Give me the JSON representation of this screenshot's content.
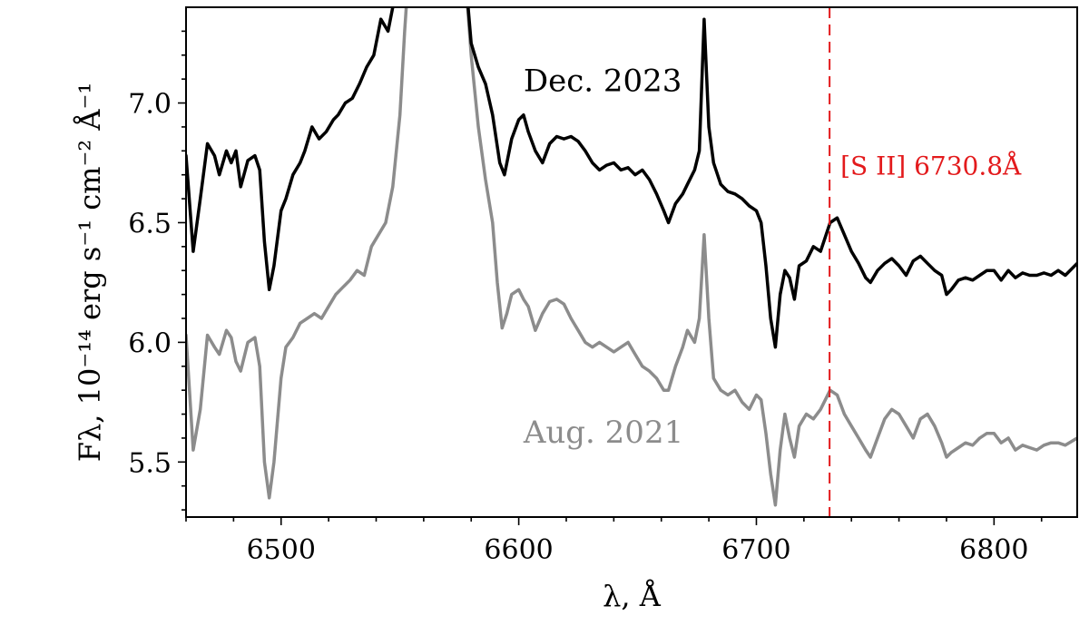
{
  "chart_data": {
    "type": "line",
    "xlabel": "λ, Å",
    "ylabel": "Fλ, 10⁻¹⁴ erg s⁻¹ cm⁻² Å⁻¹",
    "xlim": [
      6460,
      6835
    ],
    "ylim": [
      5.27,
      7.4
    ],
    "x_ticks": [
      6500,
      6600,
      6700,
      6800
    ],
    "x_tick_labels": [
      "6500",
      "6600",
      "6700",
      "6800"
    ],
    "y_ticks": [
      5.5,
      6.0,
      6.5,
      7.0
    ],
    "y_tick_labels": [
      "5.5",
      "6.0",
      "6.5",
      "7.0"
    ],
    "grid": false,
    "series": [
      {
        "name": "Dec. 2023",
        "color": "#000000",
        "points": [
          [
            6460,
            6.78
          ],
          [
            6463,
            6.38
          ],
          [
            6466,
            6.6
          ],
          [
            6469,
            6.83
          ],
          [
            6472,
            6.78
          ],
          [
            6474,
            6.7
          ],
          [
            6477,
            6.8
          ],
          [
            6479,
            6.75
          ],
          [
            6481,
            6.8
          ],
          [
            6483,
            6.65
          ],
          [
            6486,
            6.76
          ],
          [
            6489,
            6.78
          ],
          [
            6491,
            6.72
          ],
          [
            6493,
            6.42
          ],
          [
            6495,
            6.22
          ],
          [
            6497,
            6.32
          ],
          [
            6500,
            6.55
          ],
          [
            6502,
            6.6
          ],
          [
            6505,
            6.7
          ],
          [
            6508,
            6.75
          ],
          [
            6510,
            6.8
          ],
          [
            6513,
            6.9
          ],
          [
            6516,
            6.85
          ],
          [
            6519,
            6.88
          ],
          [
            6522,
            6.93
          ],
          [
            6524,
            6.95
          ],
          [
            6527,
            7.0
          ],
          [
            6530,
            7.02
          ],
          [
            6533,
            7.08
          ],
          [
            6536,
            7.15
          ],
          [
            6539,
            7.2
          ],
          [
            6542,
            7.35
          ],
          [
            6545,
            7.3
          ],
          [
            6548,
            7.45
          ],
          [
            6552,
            7.6
          ],
          [
            6577,
            7.6
          ],
          [
            6580,
            7.25
          ],
          [
            6583,
            7.15
          ],
          [
            6586,
            7.08
          ],
          [
            6589,
            6.95
          ],
          [
            6592,
            6.75
          ],
          [
            6594,
            6.7
          ],
          [
            6597,
            6.85
          ],
          [
            6600,
            6.93
          ],
          [
            6602,
            6.95
          ],
          [
            6604,
            6.88
          ],
          [
            6607,
            6.8
          ],
          [
            6610,
            6.75
          ],
          [
            6613,
            6.83
          ],
          [
            6616,
            6.86
          ],
          [
            6619,
            6.85
          ],
          [
            6622,
            6.86
          ],
          [
            6625,
            6.84
          ],
          [
            6628,
            6.8
          ],
          [
            6631,
            6.75
          ],
          [
            6634,
            6.72
          ],
          [
            6637,
            6.74
          ],
          [
            6640,
            6.75
          ],
          [
            6643,
            6.72
          ],
          [
            6646,
            6.73
          ],
          [
            6649,
            6.7
          ],
          [
            6652,
            6.72
          ],
          [
            6655,
            6.68
          ],
          [
            6658,
            6.62
          ],
          [
            6661,
            6.55
          ],
          [
            6663,
            6.5
          ],
          [
            6666,
            6.58
          ],
          [
            6669,
            6.62
          ],
          [
            6671,
            6.66
          ],
          [
            6674,
            6.72
          ],
          [
            6676,
            6.8
          ],
          [
            6678,
            7.35
          ],
          [
            6680,
            6.9
          ],
          [
            6682,
            6.75
          ],
          [
            6685,
            6.66
          ],
          [
            6688,
            6.63
          ],
          [
            6691,
            6.62
          ],
          [
            6694,
            6.6
          ],
          [
            6697,
            6.57
          ],
          [
            6700,
            6.55
          ],
          [
            6702,
            6.5
          ],
          [
            6704,
            6.32
          ],
          [
            6706,
            6.1
          ],
          [
            6708,
            5.98
          ],
          [
            6710,
            6.2
          ],
          [
            6712,
            6.3
          ],
          [
            6714,
            6.27
          ],
          [
            6716,
            6.18
          ],
          [
            6718,
            6.32
          ],
          [
            6721,
            6.34
          ],
          [
            6724,
            6.4
          ],
          [
            6727,
            6.38
          ],
          [
            6731,
            6.5
          ],
          [
            6734,
            6.52
          ],
          [
            6737,
            6.45
          ],
          [
            6740,
            6.38
          ],
          [
            6743,
            6.33
          ],
          [
            6746,
            6.27
          ],
          [
            6748,
            6.25
          ],
          [
            6751,
            6.3
          ],
          [
            6754,
            6.33
          ],
          [
            6757,
            6.35
          ],
          [
            6760,
            6.32
          ],
          [
            6763,
            6.28
          ],
          [
            6766,
            6.34
          ],
          [
            6769,
            6.36
          ],
          [
            6772,
            6.33
          ],
          [
            6775,
            6.3
          ],
          [
            6778,
            6.28
          ],
          [
            6780,
            6.2
          ],
          [
            6782,
            6.22
          ],
          [
            6785,
            6.26
          ],
          [
            6788,
            6.27
          ],
          [
            6791,
            6.26
          ],
          [
            6794,
            6.28
          ],
          [
            6797,
            6.3
          ],
          [
            6800,
            6.3
          ],
          [
            6803,
            6.26
          ],
          [
            6806,
            6.3
          ],
          [
            6809,
            6.27
          ],
          [
            6812,
            6.29
          ],
          [
            6815,
            6.28
          ],
          [
            6818,
            6.28
          ],
          [
            6821,
            6.29
          ],
          [
            6824,
            6.28
          ],
          [
            6827,
            6.3
          ],
          [
            6830,
            6.28
          ],
          [
            6835,
            6.33
          ]
        ]
      },
      {
        "name": "Aug. 2021",
        "color": "#8c8c8c",
        "points": [
          [
            6460,
            6.03
          ],
          [
            6463,
            5.55
          ],
          [
            6466,
            5.72
          ],
          [
            6469,
            6.03
          ],
          [
            6472,
            5.98
          ],
          [
            6474,
            5.95
          ],
          [
            6477,
            6.05
          ],
          [
            6479,
            6.02
          ],
          [
            6481,
            5.92
          ],
          [
            6483,
            5.88
          ],
          [
            6486,
            6.0
          ],
          [
            6489,
            6.02
          ],
          [
            6491,
            5.9
          ],
          [
            6493,
            5.5
          ],
          [
            6495,
            5.35
          ],
          [
            6497,
            5.5
          ],
          [
            6500,
            5.85
          ],
          [
            6502,
            5.98
          ],
          [
            6505,
            6.02
          ],
          [
            6508,
            6.08
          ],
          [
            6511,
            6.1
          ],
          [
            6514,
            6.12
          ],
          [
            6517,
            6.1
          ],
          [
            6520,
            6.15
          ],
          [
            6523,
            6.2
          ],
          [
            6526,
            6.23
          ],
          [
            6529,
            6.26
          ],
          [
            6532,
            6.3
          ],
          [
            6535,
            6.28
          ],
          [
            6538,
            6.4
          ],
          [
            6541,
            6.45
          ],
          [
            6544,
            6.5
          ],
          [
            6547,
            6.65
          ],
          [
            6550,
            6.95
          ],
          [
            6552,
            7.3
          ],
          [
            6554,
            7.6
          ],
          [
            6577,
            7.6
          ],
          [
            6580,
            7.2
          ],
          [
            6583,
            6.9
          ],
          [
            6586,
            6.68
          ],
          [
            6589,
            6.5
          ],
          [
            6591,
            6.25
          ],
          [
            6593,
            6.06
          ],
          [
            6595,
            6.12
          ],
          [
            6597,
            6.2
          ],
          [
            6600,
            6.22
          ],
          [
            6602,
            6.18
          ],
          [
            6604,
            6.15
          ],
          [
            6607,
            6.05
          ],
          [
            6610,
            6.12
          ],
          [
            6613,
            6.17
          ],
          [
            6616,
            6.18
          ],
          [
            6619,
            6.16
          ],
          [
            6622,
            6.1
          ],
          [
            6625,
            6.05
          ],
          [
            6628,
            6.0
          ],
          [
            6631,
            5.98
          ],
          [
            6634,
            6.0
          ],
          [
            6637,
            5.98
          ],
          [
            6640,
            5.96
          ],
          [
            6643,
            5.98
          ],
          [
            6646,
            6.0
          ],
          [
            6649,
            5.95
          ],
          [
            6652,
            5.9
          ],
          [
            6655,
            5.88
          ],
          [
            6658,
            5.85
          ],
          [
            6661,
            5.8
          ],
          [
            6663,
            5.8
          ],
          [
            6666,
            5.9
          ],
          [
            6669,
            5.98
          ],
          [
            6671,
            6.05
          ],
          [
            6674,
            6.0
          ],
          [
            6676,
            6.1
          ],
          [
            6678,
            6.45
          ],
          [
            6680,
            6.1
          ],
          [
            6682,
            5.85
          ],
          [
            6685,
            5.8
          ],
          [
            6688,
            5.78
          ],
          [
            6691,
            5.8
          ],
          [
            6694,
            5.75
          ],
          [
            6697,
            5.72
          ],
          [
            6700,
            5.78
          ],
          [
            6702,
            5.76
          ],
          [
            6704,
            5.62
          ],
          [
            6706,
            5.45
          ],
          [
            6708,
            5.32
          ],
          [
            6710,
            5.55
          ],
          [
            6712,
            5.7
          ],
          [
            6714,
            5.6
          ],
          [
            6716,
            5.52
          ],
          [
            6718,
            5.65
          ],
          [
            6721,
            5.7
          ],
          [
            6724,
            5.68
          ],
          [
            6727,
            5.72
          ],
          [
            6731,
            5.8
          ],
          [
            6734,
            5.78
          ],
          [
            6737,
            5.7
          ],
          [
            6740,
            5.65
          ],
          [
            6743,
            5.6
          ],
          [
            6746,
            5.55
          ],
          [
            6748,
            5.52
          ],
          [
            6751,
            5.6
          ],
          [
            6754,
            5.68
          ],
          [
            6757,
            5.72
          ],
          [
            6760,
            5.7
          ],
          [
            6763,
            5.65
          ],
          [
            6766,
            5.6
          ],
          [
            6769,
            5.68
          ],
          [
            6772,
            5.7
          ],
          [
            6775,
            5.65
          ],
          [
            6778,
            5.58
          ],
          [
            6780,
            5.52
          ],
          [
            6782,
            5.54
          ],
          [
            6785,
            5.56
          ],
          [
            6788,
            5.58
          ],
          [
            6791,
            5.57
          ],
          [
            6794,
            5.6
          ],
          [
            6797,
            5.62
          ],
          [
            6800,
            5.62
          ],
          [
            6803,
            5.58
          ],
          [
            6806,
            5.6
          ],
          [
            6809,
            5.55
          ],
          [
            6812,
            5.57
          ],
          [
            6815,
            5.56
          ],
          [
            6818,
            5.55
          ],
          [
            6821,
            5.57
          ],
          [
            6824,
            5.58
          ],
          [
            6827,
            5.58
          ],
          [
            6830,
            5.57
          ],
          [
            6835,
            5.6
          ]
        ]
      }
    ],
    "series_labels": [
      {
        "text": "Dec. 2023",
        "x": 6602,
        "y": 7.05,
        "color": "#000000"
      },
      {
        "text": "Aug. 2021",
        "x": 6602,
        "y": 5.58,
        "color": "#8c8c8c"
      }
    ],
    "annotations": [
      {
        "type": "vline",
        "x": 6730.8,
        "color": "#e31a1c",
        "style": "dashed",
        "label": "[S II] 6730.8Å",
        "label_y": 6.7
      }
    ]
  }
}
